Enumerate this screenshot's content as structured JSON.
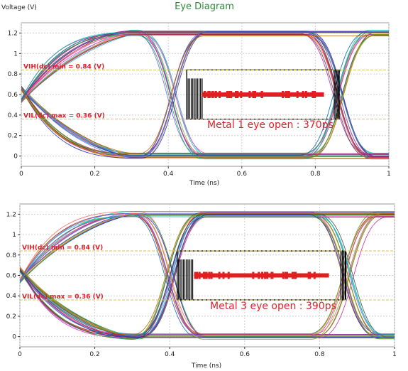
{
  "chart_data": [
    {
      "type": "line",
      "title": "Eye Diagram",
      "ylabel": "Voltage (V)",
      "xlabel": "Time (ns)",
      "xlim": [
        0,
        1
      ],
      "ylim": [
        -0.1,
        1.3
      ],
      "xticks": [
        0,
        0.2,
        0.4,
        0.6,
        0.8,
        1
      ],
      "yticks": [
        0,
        0.2,
        0.4,
        0.6,
        0.8,
        1,
        1.2
      ],
      "grid": true,
      "thresholds": [
        {
          "label": "VIH(dc) min = 0.84 (V)",
          "value": 0.84
        },
        {
          "label": "VIL(dc) max = 0.36 (V)",
          "value": 0.36
        }
      ],
      "eye_mask": {
        "x0": 0.45,
        "x1": 0.865,
        "y0": 0.36,
        "y1": 0.84
      },
      "first_crossing": 0.41,
      "second_crossing": 0.862,
      "annotation": "Metal 1 eye open :  370ps"
    },
    {
      "type": "line",
      "title": "",
      "ylabel": "",
      "xlabel": "Time (ns)",
      "xlim": [
        0,
        1
      ],
      "ylim": [
        -0.1,
        1.3
      ],
      "xticks": [
        0,
        0.2,
        0.4,
        0.6,
        0.8,
        1
      ],
      "yticks": [
        0,
        0.2,
        0.4,
        0.6,
        0.8,
        1,
        1.2
      ],
      "grid": true,
      "thresholds": [
        {
          "label": "VIH(dc) min = 0.84 (V)",
          "value": 0.84
        },
        {
          "label": "VIL(dc) max = 0.36 (V)",
          "value": 0.36
        }
      ],
      "eye_mask": {
        "x0": 0.42,
        "x1": 0.87,
        "y0": 0.36,
        "y1": 0.84
      },
      "first_crossing": 0.4,
      "second_crossing": 0.875,
      "annotation": "Metal 3 eye open :  390ps"
    }
  ],
  "colors": {
    "threshold_line": "#d8c060",
    "threshold_text": "#e0202a",
    "title": "#2e8b3a",
    "annotation": "#e0202a"
  }
}
